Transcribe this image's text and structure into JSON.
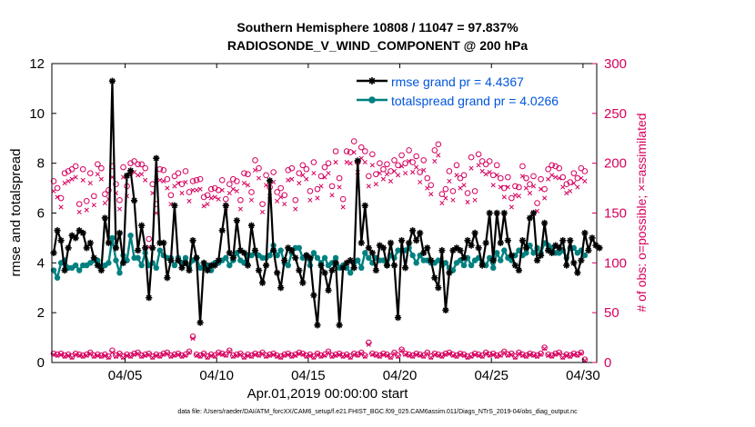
{
  "chart_data": {
    "type": "line",
    "title": "Southern Hemisphere 10808 / 11047 = 97.837%",
    "subtitle": "RADIOSONDE_V_WIND_COMPONENT @ 200 hPa",
    "xlabel": "Apr.01,2019 00:00:00 start",
    "ylabel": "rmse and totalspread",
    "y2label": "# of obs: o=possible; ×=assimilated",
    "footer": "data file: /Users/raeder/DAI/ATM_forcXX/CAM6_setup/f.e21.FHIST_BGC.f09_025.CAM6assim.011/Diags_NTrS_2019-04/obs_diag_output.nc",
    "xlim": [
      1,
      30.75
    ],
    "ylim": [
      0,
      12
    ],
    "y2lim": [
      0,
      300
    ],
    "xticks": [
      5,
      10,
      15,
      20,
      25,
      30
    ],
    "xtick_labels": [
      "04/05",
      "04/10",
      "04/15",
      "04/20",
      "04/25",
      "04/30"
    ],
    "yticks": [
      0,
      2,
      4,
      6,
      8,
      10,
      12
    ],
    "y2ticks": [
      0,
      50,
      100,
      150,
      200,
      250,
      300
    ],
    "grid": false,
    "legend_position": "top-right",
    "colors": {
      "rmse": "#000000",
      "spread": "#008080",
      "obs": "#d6005f"
    },
    "series": [
      {
        "name": "rmse grand pr = 4.4367",
        "axis": "left",
        "marker": "asterisk",
        "values": [
          4.4,
          5.3,
          4.9,
          3.7,
          4.6,
          5.1,
          5.0,
          5.3,
          5.2,
          4.6,
          4.8,
          4.2,
          3.9,
          3.7,
          5.8,
          4.8,
          11.3,
          4.6,
          5.2,
          4.0,
          7.5,
          7.7,
          6.5,
          4.5,
          5.5,
          4.6,
          2.6,
          4.6,
          8.2,
          4.8,
          4.8,
          3.4,
          4.1,
          6.3,
          4.1,
          3.8,
          4.0,
          3.7,
          4.9,
          4.2,
          1.6,
          4.0,
          3.7,
          3.9,
          3.9,
          4.1,
          5.3,
          6.3,
          4.4,
          4.2,
          5.7,
          4.5,
          4.4,
          3.9,
          5.5,
          4.5,
          3.7,
          3.2,
          3.9,
          7.3,
          4.5,
          3.6,
          3.0,
          4.1,
          4.6,
          4.5,
          4.2,
          3.7,
          3.2,
          4.3,
          4.2,
          2.7,
          1.5,
          3.9,
          3.6,
          2.9,
          3.7,
          4.0,
          1.5,
          3.8,
          4.0,
          4.1,
          3.8,
          8.1,
          4.8,
          6.3,
          4.6,
          4.4,
          3.7,
          4.7,
          4.6,
          3.9,
          4.8,
          3.9,
          1.8,
          4.9,
          3.8,
          4.8,
          5.3,
          4.9,
          5.2,
          4.4,
          4.6,
          4.1,
          3.4,
          3.0,
          4.5,
          2.1,
          3.6,
          4.5,
          4.6,
          4.5,
          4.2,
          4.9,
          4.7,
          5.2,
          4.6,
          3.9,
          4.8,
          6.0,
          4.1,
          6.0,
          4.8,
          6.0,
          4.9,
          4.3,
          3.9,
          3.7,
          4.9,
          4.6,
          5.8,
          6.0,
          4.1,
          4.3,
          5.6,
          4.5,
          4.4,
          4.7,
          4.6,
          4.9,
          3.9,
          4.9,
          4.0,
          3.6,
          4.1,
          5.2,
          4.5,
          5.0,
          4.7,
          4.6
        ]
      },
      {
        "name": "totalspread grand pr = 4.0266",
        "axis": "left",
        "marker": "circle",
        "values": [
          3.7,
          3.4,
          4.0,
          4.1,
          3.8,
          3.8,
          3.9,
          3.7,
          3.9,
          3.9,
          4.0,
          4.1,
          4.1,
          3.8,
          3.9,
          4.0,
          5.0,
          4.1,
          3.6,
          4.3,
          4.1,
          5.1,
          4.2,
          4.2,
          3.9,
          4.4,
          3.9,
          4.0,
          3.8,
          4.5,
          4.3,
          4.2,
          4.2,
          3.9,
          4.2,
          4.0,
          4.2,
          3.8,
          4.1,
          4.2,
          3.8,
          3.8,
          3.9,
          3.7,
          4.0,
          4.0,
          4.1,
          4.2,
          3.9,
          4.1,
          4.4,
          4.1,
          4.0,
          4.3,
          4.3,
          4.4,
          4.3,
          4.2,
          4.2,
          4.3,
          4.7,
          4.3,
          4.5,
          4.0,
          3.9,
          4.4,
          4.6,
          4.6,
          4.2,
          4.3,
          3.9,
          4.4,
          4.2,
          4.0,
          4.2,
          3.9,
          4.0,
          4.2,
          3.8,
          3.9,
          3.8,
          3.6,
          4.0,
          4.1,
          3.8,
          4.4,
          4.2,
          4.0,
          4.2,
          4.1,
          4.1,
          3.9,
          4.3,
          4.2,
          4.5,
          4.5,
          4.5,
          4.6,
          4.3,
          4.0,
          4.3,
          4.1,
          4.1,
          4.0,
          4.0,
          4.1,
          3.9,
          4.0,
          3.8,
          3.7,
          4.0,
          4.1,
          3.9,
          4.2,
          3.9,
          4.1,
          4.2,
          4.0,
          3.9,
          4.2,
          3.8,
          4.4,
          4.1,
          4.5,
          4.2,
          4.1,
          4.3,
          4.5,
          4.3,
          4.4,
          4.7,
          4.4,
          4.6,
          4.4,
          4.8,
          4.7,
          4.6,
          4.4,
          4.4,
          4.5,
          4.2,
          4.6,
          4.6,
          4.4,
          4.5,
          4.3
        ]
      },
      {
        "name": "obs possible",
        "axis": "right",
        "marker": "o",
        "values": [
          182,
          175,
          165,
          190,
          192,
          194,
          197,
          159,
          194,
          162,
          190,
          167,
          199,
          195,
          169,
          173,
          197,
          179,
          163,
          196,
          177,
          200,
          202,
          199,
          199,
          195,
          124,
          179,
          159,
          194,
          193,
          184,
          168,
          187,
          190,
          179,
          192,
          171,
          182,
          183,
          184,
          166,
          168,
          174,
          175,
          173,
          183,
          164,
          179,
          184,
          182,
          163,
          190,
          189,
          171,
          203,
          195,
          159,
          188,
          176,
          191,
          171,
          175,
          168,
          193,
          195,
          163,
          190,
          198,
          194,
          172,
          201,
          174,
          187,
          196,
          200,
          177,
          212,
          185,
          164,
          212,
          211,
          222,
          201,
          216,
          212,
          187,
          209,
          189,
          200,
          194,
          199,
          192,
          203,
          198,
          208,
          200,
          213,
          201,
          207,
          191,
          203,
          185,
          178,
          213,
          219,
          169,
          174,
          192,
          172,
          198,
          185,
          188,
          170,
          206,
          172,
          209,
          202,
          199,
          202,
          188,
          198,
          185,
          175,
          186,
          165,
          177,
          176,
          197,
          185,
          179,
          187,
          160,
          184,
          174,
          194,
          198,
          197,
          195,
          186,
          179,
          181,
          190,
          185,
          195,
          192
        ]
      },
      {
        "name": "obs assimilated",
        "axis": "right",
        "marker": "x",
        "values": [
          172,
          166,
          156,
          180,
          182,
          184,
          186,
          151,
          183,
          153,
          180,
          158,
          189,
          184,
          160,
          164,
          186,
          170,
          154,
          186,
          167,
          190,
          191,
          188,
          189,
          183,
          116,
          170,
          150,
          183,
          182,
          175,
          159,
          177,
          180,
          170,
          181,
          162,
          173,
          173,
          174,
          157,
          159,
          165,
          166,
          164,
          173,
          155,
          170,
          174,
          172,
          154,
          180,
          178,
          163,
          193,
          185,
          151,
          178,
          167,
          181,
          162,
          166,
          159,
          183,
          184,
          154,
          180,
          188,
          184,
          163,
          190,
          165,
          177,
          186,
          190,
          168,
          201,
          176,
          156,
          201,
          200,
          211,
          191,
          205,
          201,
          177,
          198,
          179,
          190,
          184,
          189,
          182,
          192,
          188,
          197,
          190,
          202,
          191,
          196,
          181,
          193,
          175,
          169,
          202,
          208,
          160,
          165,
          182,
          163,
          188,
          175,
          178,
          161,
          195,
          163,
          198,
          192,
          189,
          191,
          178,
          188,
          176,
          166,
          176,
          156,
          168,
          167,
          187,
          175,
          170,
          177,
          152,
          174,
          165,
          184,
          188,
          186,
          185,
          176,
          170,
          172,
          180,
          176,
          185,
          182
        ]
      },
      {
        "name": "obs possible low",
        "axis": "right",
        "marker": "o",
        "values": [
          9,
          8,
          9,
          7,
          8,
          6,
          9,
          8,
          7,
          8,
          10,
          7,
          8,
          7,
          8,
          6,
          12,
          7,
          9,
          6,
          8,
          7,
          9,
          10,
          7,
          8,
          9,
          6,
          8,
          7,
          9,
          10,
          7,
          8,
          9,
          7,
          8,
          11,
          26,
          8,
          7,
          9,
          6,
          8,
          7,
          10,
          9,
          8,
          12,
          7,
          8,
          9,
          6,
          8,
          7,
          9,
          8,
          10,
          7,
          8,
          9,
          7,
          6,
          8,
          9,
          7,
          8,
          10,
          9,
          7,
          8,
          6,
          9,
          7,
          8,
          11,
          7,
          8,
          9,
          7,
          8,
          6,
          9,
          8,
          10,
          7,
          20,
          9,
          8,
          7,
          9,
          8,
          6,
          10,
          7,
          13,
          9,
          8,
          7,
          9,
          8,
          7,
          10,
          6,
          9,
          8,
          7,
          9,
          10,
          8,
          7,
          9,
          8,
          6,
          7,
          9,
          8,
          7,
          10,
          8,
          9,
          7,
          8,
          11,
          8,
          9,
          6,
          10,
          8,
          7,
          9,
          8,
          7,
          9,
          15,
          8,
          7,
          9,
          10,
          6,
          8,
          7,
          9,
          8,
          10,
          3
        ]
      },
      {
        "name": "obs assimilated low",
        "axis": "right",
        "marker": "x",
        "values": [
          8,
          7,
          8,
          6,
          7,
          5,
          8,
          7,
          6,
          7,
          9,
          6,
          7,
          6,
          7,
          5,
          10,
          6,
          8,
          5,
          7,
          6,
          8,
          9,
          6,
          7,
          8,
          5,
          7,
          6,
          8,
          9,
          6,
          7,
          8,
          6,
          7,
          10,
          24,
          7,
          6,
          8,
          5,
          7,
          6,
          9,
          8,
          7,
          11,
          6,
          7,
          8,
          5,
          7,
          6,
          8,
          7,
          9,
          6,
          7,
          8,
          6,
          5,
          7,
          8,
          6,
          7,
          9,
          8,
          6,
          7,
          5,
          8,
          6,
          7,
          10,
          6,
          7,
          8,
          6,
          7,
          5,
          8,
          7,
          9,
          6,
          18,
          8,
          7,
          6,
          8,
          7,
          5,
          9,
          6,
          12,
          8,
          7,
          6,
          8,
          7,
          6,
          9,
          5,
          8,
          7,
          6,
          8,
          9,
          7,
          6,
          8,
          7,
          5,
          6,
          8,
          7,
          6,
          9,
          7,
          8,
          6,
          7,
          10,
          7,
          8,
          5,
          9,
          7,
          6,
          8,
          7,
          6,
          8,
          14,
          7,
          6,
          8,
          9,
          5,
          7,
          6,
          8,
          7,
          9,
          2
        ]
      }
    ],
    "legend": [
      {
        "label": "rmse grand pr = 4.4367",
        "series": 0
      },
      {
        "label": "totalspread grand pr = 4.0266",
        "series": 1
      }
    ]
  }
}
